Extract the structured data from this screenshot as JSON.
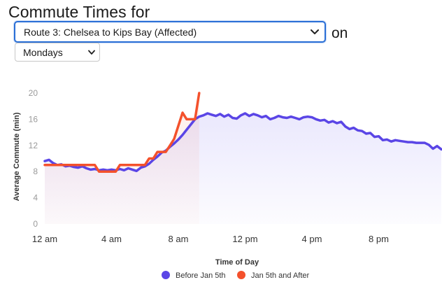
{
  "header": {
    "title": "Commute Times for",
    "on_label": "on"
  },
  "route_select": {
    "value": "Route 3: Chelsea to Kips Bay (Affected)"
  },
  "day_select": {
    "value": "Mondays"
  },
  "colors": {
    "accent": "#2a6fd6",
    "before_series": "#5a45e6",
    "after_series": "#f4512c"
  },
  "chart_data": {
    "type": "line",
    "title": "",
    "xlabel": "Time of Day",
    "ylabel": "Average Commute (min)",
    "ylim": [
      0,
      20
    ],
    "yticks": [
      0,
      4,
      8,
      12,
      16,
      20
    ],
    "xlim": [
      0,
      23.75
    ],
    "xticks": [
      {
        "h": 0,
        "label": "12 am"
      },
      {
        "h": 4,
        "label": "4 am"
      },
      {
        "h": 8,
        "label": "8 am"
      },
      {
        "h": 12,
        "label": "12 pm"
      },
      {
        "h": 16,
        "label": "4 pm"
      },
      {
        "h": 20,
        "label": "8 pm"
      }
    ],
    "series": [
      {
        "name": "Before Jan 5th",
        "color": "#5a45e6",
        "x": [
          0,
          0.25,
          0.5,
          0.75,
          1,
          1.25,
          1.5,
          1.75,
          2,
          2.25,
          2.5,
          2.75,
          3,
          3.25,
          3.5,
          3.75,
          4,
          4.25,
          4.5,
          4.75,
          5,
          5.25,
          5.5,
          5.75,
          6,
          6.25,
          6.5,
          6.75,
          7,
          7.25,
          7.5,
          7.75,
          8,
          8.25,
          8.5,
          8.75,
          9,
          9.25,
          9.5,
          9.75,
          10,
          10.25,
          10.5,
          10.75,
          11,
          11.25,
          11.5,
          11.75,
          12,
          12.25,
          12.5,
          12.75,
          13,
          13.25,
          13.5,
          13.75,
          14,
          14.25,
          14.5,
          14.75,
          15,
          15.25,
          15.5,
          15.75,
          16,
          16.25,
          16.5,
          16.75,
          17,
          17.25,
          17.5,
          17.75,
          18,
          18.25,
          18.5,
          18.75,
          19,
          19.25,
          19.5,
          19.75,
          20,
          20.25,
          20.5,
          20.75,
          21,
          21.25,
          21.5,
          21.75,
          22,
          22.25,
          22.5,
          22.75,
          23,
          23.25,
          23.5,
          23.75
        ],
        "values": [
          9.6,
          9.8,
          9.3,
          9.0,
          9.1,
          8.8,
          8.9,
          8.7,
          8.6,
          8.8,
          8.5,
          8.3,
          8.4,
          8.2,
          8.3,
          8.2,
          8.3,
          8.2,
          8.4,
          8.2,
          8.5,
          8.3,
          8.1,
          8.6,
          8.8,
          9.2,
          9.8,
          10.3,
          10.9,
          11.2,
          11.8,
          12.3,
          12.9,
          13.6,
          14.4,
          15.2,
          16.0,
          16.4,
          16.6,
          16.9,
          16.7,
          16.5,
          16.8,
          16.4,
          16.7,
          16.2,
          16.1,
          16.6,
          16.9,
          16.5,
          16.8,
          16.6,
          16.3,
          16.5,
          16.0,
          16.2,
          16.5,
          16.3,
          16.2,
          16.4,
          16.2,
          16.0,
          16.3,
          16.4,
          16.3,
          16.0,
          15.8,
          15.9,
          15.5,
          15.7,
          15.4,
          15.6,
          14.9,
          14.5,
          14.7,
          14.3,
          14.2,
          13.8,
          13.9,
          13.3,
          13.4,
          12.8,
          12.9,
          12.6,
          12.8,
          12.7,
          12.6,
          12.5,
          12.5,
          12.4,
          12.4,
          12.4,
          12.1,
          11.5,
          11.9,
          11.4
        ],
        "fill_to": [
          11.4,
          11.4
        ]
      },
      {
        "name": "Jan 5th and After",
        "color": "#f4512c",
        "x": [
          0,
          0.25,
          0.5,
          0.75,
          1,
          1.25,
          1.5,
          1.75,
          2,
          2.25,
          2.5,
          2.75,
          3,
          3.25,
          3.5,
          3.75,
          4,
          4.25,
          4.5,
          4.75,
          5,
          5.25,
          5.5,
          5.75,
          6,
          6.25,
          6.5,
          6.75,
          7,
          7.25,
          7.5,
          7.75,
          8,
          8.25,
          8.5,
          8.75,
          9,
          9.25
        ],
        "values": [
          9.0,
          9.0,
          9.0,
          9.0,
          9.0,
          9.0,
          9.0,
          9.0,
          9.0,
          9.0,
          9.0,
          9.0,
          9.0,
          8.0,
          8.0,
          8.0,
          8.0,
          8.0,
          9.0,
          9.0,
          9.0,
          9.0,
          9.0,
          9.0,
          9.0,
          10.0,
          10.0,
          11.0,
          11.0,
          11.0,
          12.0,
          13.0,
          15.0,
          17.0,
          16.0,
          16.0,
          16.0,
          20.0
        ]
      }
    ],
    "legend": [
      "Before Jan 5th",
      "Jan 5th and After"
    ],
    "legend_position": "bottom-center",
    "grid": false
  }
}
